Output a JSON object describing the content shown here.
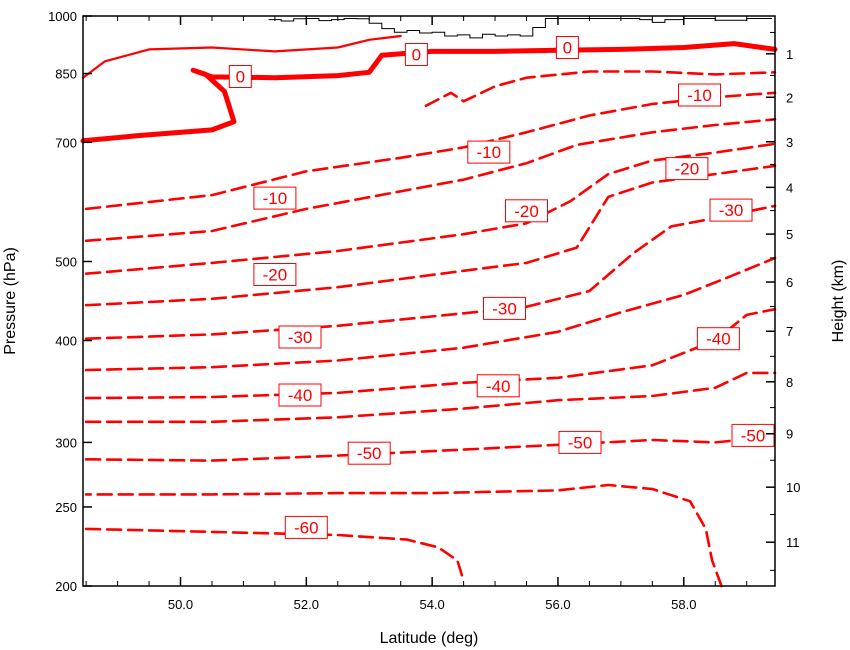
{
  "chart_data": {
    "type": "contour",
    "xlabel": "Latitude (deg)",
    "ylabel_left": "Pressure (hPa)",
    "ylabel_right": "Height (km)",
    "xlim": [
      48.45,
      59.45
    ],
    "ylim_pressure": [
      1000,
      200
    ],
    "x_ticks": [
      {
        "value": 50,
        "label": "50.0"
      },
      {
        "value": 52,
        "label": "52.0"
      },
      {
        "value": 54,
        "label": "54.0"
      },
      {
        "value": 56,
        "label": "56.0"
      },
      {
        "value": 58,
        "label": "58.0"
      }
    ],
    "y_ticks_left": [
      {
        "value": 200,
        "label": "200"
      },
      {
        "value": 250,
        "label": "250"
      },
      {
        "value": 300,
        "label": "300"
      },
      {
        "value": 400,
        "label": "400"
      },
      {
        "value": 500,
        "label": "500"
      },
      {
        "value": 700,
        "label": "700"
      },
      {
        "value": 850,
        "label": "850"
      },
      {
        "value": 1000,
        "label": "1000"
      }
    ],
    "y_ticks_right": [
      {
        "value": 1,
        "label": "1"
      },
      {
        "value": 2,
        "label": "2"
      },
      {
        "value": 3,
        "label": "3"
      },
      {
        "value": 4,
        "label": "4"
      },
      {
        "value": 5,
        "label": "5"
      },
      {
        "value": 6,
        "label": "6"
      },
      {
        "value": 7,
        "label": "7"
      },
      {
        "value": 8,
        "label": "8"
      },
      {
        "value": 9,
        "label": "9"
      },
      {
        "value": 10,
        "label": "10"
      },
      {
        "value": 11,
        "label": "11"
      }
    ],
    "contour_color": "#ff0000",
    "terrain_color": "#000000",
    "contour_levels": [
      {
        "level": -60,
        "points": [
          [
            48.5,
            235
          ],
          [
            50.5,
            233
          ],
          [
            52.5,
            231
          ],
          [
            53.6,
            228
          ],
          [
            54.1,
            223
          ],
          [
            54.4,
            215
          ],
          [
            54.5,
            203
          ]
        ]
      },
      {
        "level": -60,
        "points": [
          [
            58.6,
            200
          ],
          [
            58.45,
            215
          ],
          [
            58.35,
            235
          ],
          [
            58.1,
            254
          ],
          [
            57.5,
            263
          ],
          [
            56.8,
            266
          ],
          [
            56.0,
            262
          ],
          [
            55.0,
            261
          ],
          [
            54.0,
            260
          ],
          [
            52.5,
            260
          ],
          [
            50.5,
            259
          ],
          [
            48.5,
            259
          ]
        ]
      },
      {
        "level": -50,
        "points": [
          [
            48.5,
            286
          ],
          [
            50.5,
            285
          ],
          [
            52.5,
            289
          ],
          [
            54.5,
            294
          ],
          [
            56.0,
            298
          ],
          [
            57.5,
            302
          ],
          [
            58.5,
            300
          ],
          [
            59.45,
            305
          ]
        ]
      },
      {
        "level": -50,
        "points": [
          [
            48.5,
            318
          ],
          [
            50.5,
            318
          ],
          [
            52.5,
            322
          ],
          [
            54.5,
            330
          ],
          [
            56.0,
            338
          ],
          [
            57.5,
            342
          ],
          [
            58.5,
            350
          ],
          [
            59.0,
            365
          ],
          [
            59.45,
            365
          ]
        ]
      },
      {
        "level": -40,
        "points": [
          [
            48.5,
            340
          ],
          [
            50.5,
            341
          ],
          [
            52.5,
            345
          ],
          [
            54.5,
            355
          ],
          [
            56.0,
            360
          ],
          [
            57.5,
            373
          ],
          [
            58.5,
            400
          ],
          [
            59.0,
            430
          ],
          [
            59.45,
            437
          ]
        ]
      },
      {
        "level": -40,
        "points": [
          [
            48.5,
            368
          ],
          [
            50.5,
            371
          ],
          [
            52.5,
            378
          ],
          [
            54.5,
            392
          ],
          [
            56.0,
            410
          ],
          [
            57.0,
            433
          ],
          [
            58.0,
            455
          ],
          [
            58.7,
            478
          ],
          [
            59.45,
            505
          ]
        ]
      },
      {
        "level": -30,
        "points": [
          [
            48.5,
            402
          ],
          [
            50.5,
            407
          ],
          [
            52.5,
            417
          ],
          [
            54.5,
            432
          ],
          [
            55.5,
            440
          ],
          [
            56.5,
            460
          ],
          [
            57.2,
            512
          ],
          [
            57.8,
            552
          ],
          [
            58.5,
            565
          ],
          [
            59.45,
            585
          ]
        ]
      },
      {
        "level": -20,
        "points": [
          [
            48.5,
            442
          ],
          [
            50.5,
            450
          ],
          [
            52.5,
            465
          ],
          [
            54.5,
            487
          ],
          [
            55.5,
            498
          ],
          [
            56.3,
            520
          ],
          [
            56.8,
            600
          ],
          [
            57.5,
            625
          ],
          [
            58.5,
            640
          ],
          [
            59.45,
            655
          ]
        ]
      },
      {
        "level": -20,
        "points": [
          [
            48.5,
            483
          ],
          [
            50.5,
            498
          ],
          [
            52.5,
            515
          ],
          [
            54.5,
            540
          ],
          [
            55.5,
            557
          ],
          [
            56.2,
            593
          ],
          [
            56.8,
            640
          ],
          [
            57.5,
            665
          ],
          [
            58.5,
            680
          ],
          [
            59.45,
            697
          ]
        ]
      },
      {
        "level": -10,
        "points": [
          [
            48.5,
            530
          ],
          [
            50.5,
            545
          ],
          [
            52.0,
            580
          ],
          [
            54.5,
            630
          ],
          [
            55.5,
            660
          ],
          [
            56.3,
            695
          ],
          [
            57.5,
            720
          ],
          [
            58.5,
            735
          ],
          [
            59.45,
            747
          ]
        ]
      },
      {
        "level": -10,
        "points": [
          [
            48.5,
            580
          ],
          [
            50.5,
            603
          ],
          [
            52.0,
            645
          ],
          [
            53.5,
            670
          ],
          [
            54.5,
            690
          ],
          [
            55.5,
            720
          ],
          [
            56.5,
            755
          ],
          [
            57.5,
            780
          ],
          [
            58.5,
            795
          ],
          [
            59.45,
            805
          ]
        ]
      },
      {
        "level": -10,
        "points": [
          [
            53.9,
            776
          ],
          [
            54.3,
            805
          ],
          [
            54.5,
            786
          ],
          [
            55.0,
            820
          ],
          [
            55.5,
            840
          ],
          [
            56.5,
            855
          ],
          [
            57.5,
            855
          ],
          [
            58.5,
            848
          ],
          [
            59.45,
            853
          ]
        ]
      },
      {
        "level": 0,
        "bold": true,
        "points": [
          [
            48.45,
            703
          ],
          [
            49.3,
            713
          ],
          [
            50.5,
            725
          ],
          [
            50.85,
            742
          ],
          [
            50.7,
            808
          ],
          [
            50.4,
            848
          ],
          [
            50.2,
            858
          ],
          [
            50.5,
            842
          ],
          [
            51.5,
            840
          ],
          [
            52.5,
            845
          ],
          [
            53.0,
            853
          ],
          [
            53.2,
            895
          ],
          [
            54.0,
            905
          ],
          [
            55.0,
            905
          ],
          [
            56.0,
            908
          ],
          [
            57.0,
            910
          ],
          [
            58.0,
            915
          ],
          [
            58.8,
            925
          ],
          [
            59.45,
            910
          ]
        ]
      },
      {
        "level": 0,
        "points": [
          [
            48.45,
            840
          ],
          [
            48.8,
            880
          ],
          [
            49.5,
            910
          ],
          [
            50.5,
            915
          ],
          [
            51.5,
            905
          ],
          [
            52.5,
            915
          ],
          [
            53.0,
            935
          ],
          [
            53.5,
            945
          ]
        ]
      }
    ],
    "contour_labels": [
      {
        "text": "-60",
        "x": 52.0,
        "p": 236
      },
      {
        "text": "-50",
        "x": 53.0,
        "p": 291
      },
      {
        "text": "-50",
        "x": 56.35,
        "p": 300
      },
      {
        "text": "-50",
        "x": 59.1,
        "p": 306
      },
      {
        "text": "-40",
        "x": 51.9,
        "p": 343
      },
      {
        "text": "-40",
        "x": 55.05,
        "p": 352
      },
      {
        "text": "-40",
        "x": 58.55,
        "p": 402
      },
      {
        "text": "-30",
        "x": 51.9,
        "p": 404
      },
      {
        "text": "-30",
        "x": 55.15,
        "p": 438
      },
      {
        "text": "-30",
        "x": 58.75,
        "p": 578
      },
      {
        "text": "-20",
        "x": 51.5,
        "p": 482
      },
      {
        "text": "-20",
        "x": 55.5,
        "p": 577
      },
      {
        "text": "-20",
        "x": 58.05,
        "p": 650
      },
      {
        "text": "-10",
        "x": 51.5,
        "p": 598
      },
      {
        "text": "-10",
        "x": 54.9,
        "p": 681
      },
      {
        "text": "-10",
        "x": 58.25,
        "p": 800
      },
      {
        "text": "0",
        "x": 50.95,
        "p": 843
      },
      {
        "text": "0",
        "x": 53.75,
        "p": 897
      },
      {
        "text": "0",
        "x": 56.15,
        "p": 915
      }
    ],
    "terrain": {
      "x": [
        51.4,
        51.6,
        51.8,
        52.0,
        52.2,
        52.4,
        52.6,
        52.8,
        53.0,
        53.2,
        53.4,
        53.6,
        53.8,
        54.0,
        54.2,
        54.4,
        54.6,
        54.8,
        55.0,
        55.2,
        55.4,
        55.6,
        55.8,
        56.0,
        56.5,
        57.0,
        57.3,
        57.5,
        57.7,
        58.0,
        58.5,
        59.0,
        59.4
      ],
      "p": [
        990,
        986,
        992,
        993,
        987,
        990,
        993,
        992,
        980,
        965,
        955,
        960,
        953,
        955,
        945,
        948,
        940,
        950,
        945,
        948,
        945,
        968,
        993,
        993,
        993,
        993,
        990,
        982,
        990,
        993,
        988,
        993,
        993
      ]
    }
  }
}
